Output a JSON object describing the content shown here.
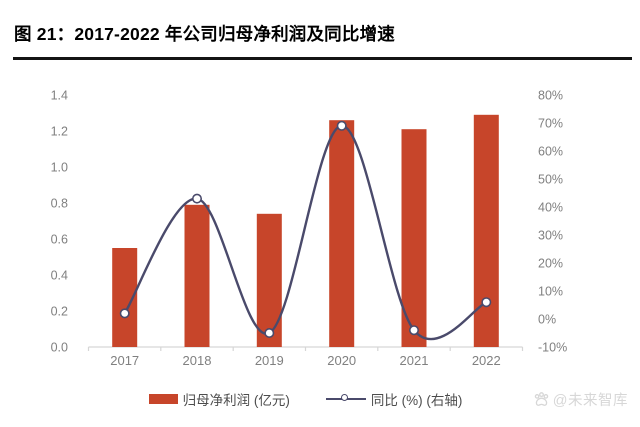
{
  "header": {
    "title": "图 21：2017-2022 年公司归母净利润及同比增速"
  },
  "chart_data": {
    "type": "combo",
    "title": "2017-2022 年公司归母净利润及同比增速",
    "categories": [
      "2017",
      "2018",
      "2019",
      "2020",
      "2021",
      "2022"
    ],
    "series": [
      {
        "name": "归母净利润",
        "legend": "归母净利润 (亿元)",
        "type": "bar",
        "axis": "left",
        "unit": "亿元",
        "color": "#c7452a",
        "values": [
          0.55,
          0.79,
          0.74,
          1.26,
          1.21,
          1.29
        ]
      },
      {
        "name": "同比",
        "legend": "同比 (%) (右轴)",
        "type": "line",
        "axis": "right",
        "unit": "%",
        "color": "#4a4a6b",
        "marker": "open-circle",
        "values": [
          2,
          43,
          -5,
          69,
          -4,
          6
        ]
      }
    ],
    "left_axis": {
      "min": 0,
      "max": 1.4,
      "ticks": [
        "0.0",
        "0.2",
        "0.4",
        "0.6",
        "0.8",
        "1.0",
        "1.2",
        "1.4"
      ]
    },
    "right_axis": {
      "min": -10,
      "max": 80,
      "ticks": [
        "-10%",
        "0%",
        "10%",
        "20%",
        "30%",
        "40%",
        "50%",
        "60%",
        "70%",
        "80%"
      ]
    },
    "grid": false,
    "legend_position": "bottom",
    "tick_label_color": "#808080",
    "axis_line_color": "#d6d6d6"
  },
  "watermark": {
    "icon": "paw",
    "text": "@未来智库"
  }
}
